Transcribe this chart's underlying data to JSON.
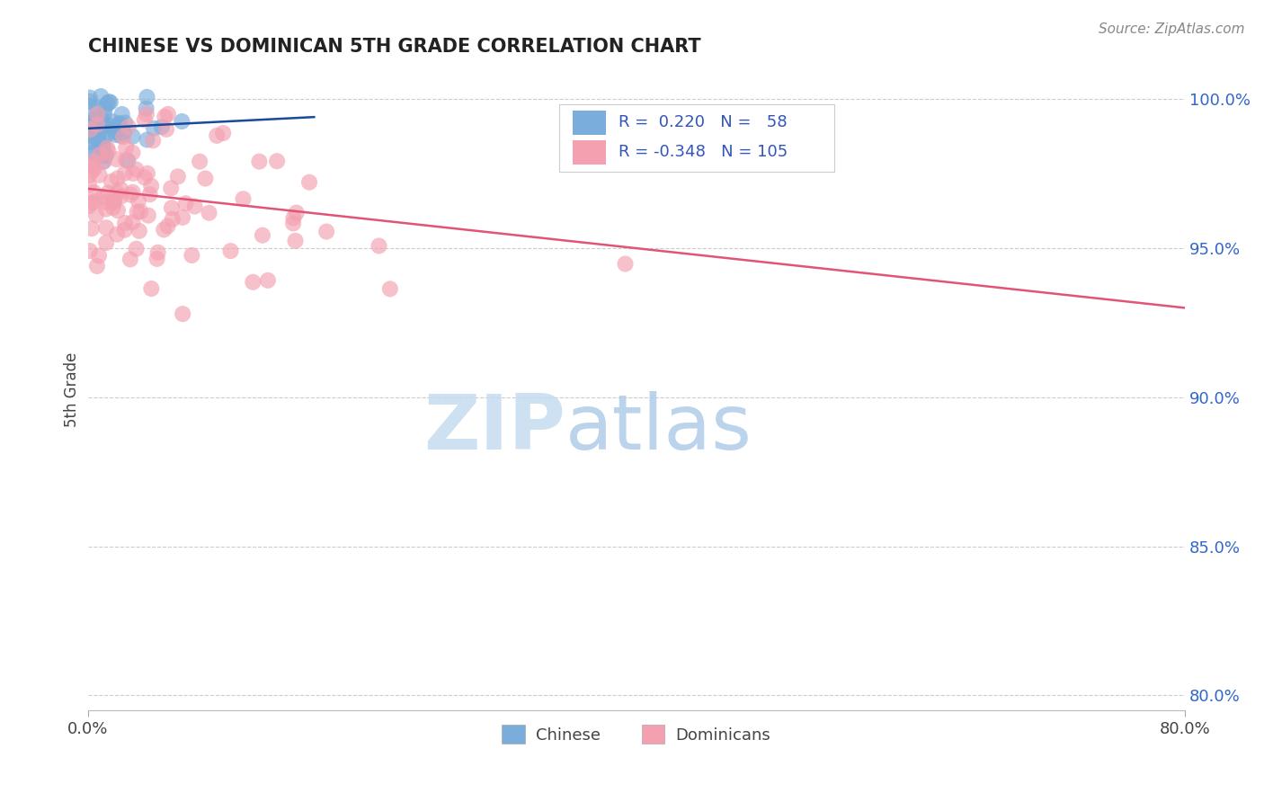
{
  "title": "CHINESE VS DOMINICAN 5TH GRADE CORRELATION CHART",
  "source": "Source: ZipAtlas.com",
  "ylabel": "5th Grade",
  "ytick_labels": [
    "80.0%",
    "85.0%",
    "90.0%",
    "95.0%",
    "100.0%"
  ],
  "ytick_values": [
    0.8,
    0.85,
    0.9,
    0.95,
    1.0
  ],
  "xlim": [
    0.0,
    0.8
  ],
  "ylim": [
    0.795,
    1.01
  ],
  "blue_color": "#7AADDB",
  "pink_color": "#F4A0B0",
  "trend_blue": "#1A4A9A",
  "trend_pink": "#E05575",
  "watermark_zip": "ZIP",
  "watermark_atlas": "atlas",
  "watermark_color_zip": "#C8DFF0",
  "watermark_color_atlas": "#B8D5E8",
  "background": "#FFFFFF",
  "title_color": "#222222",
  "grid_color": "#CCCCCC",
  "legend_color": "#3355BB",
  "source_color": "#888888"
}
